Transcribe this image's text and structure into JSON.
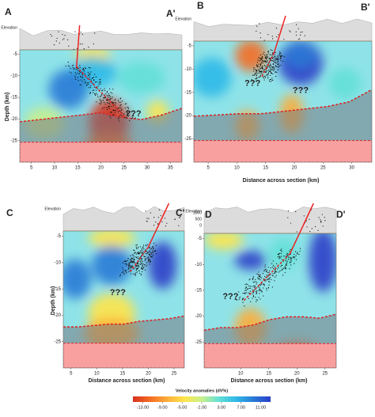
{
  "chart_data": [
    {
      "type": "section",
      "label_left": "A",
      "label_right": "A'",
      "elevation_label": "Elevation",
      "ylabel": "Depth (km)",
      "annotations": [
        "???"
      ],
      "xlim": [
        2.5,
        37.5
      ],
      "xticks": [
        5,
        10,
        15,
        20,
        25,
        30,
        35
      ],
      "ylim": [
        -30,
        -4
      ],
      "yticks": [
        -5,
        -10,
        -15,
        -20,
        -25
      ]
    },
    {
      "type": "section",
      "label_left": "B",
      "label_right": "B'",
      "elevation_label": "Elevation",
      "xlabel": "Distance across section (km)",
      "annotations": [
        "???",
        "???"
      ],
      "xlim": [
        2.5,
        33.5
      ],
      "xticks": [
        5,
        10,
        15,
        20,
        25,
        30
      ],
      "ylim": [
        -30,
        -4
      ],
      "yticks": [
        -5,
        -10,
        -15,
        -20,
        -25
      ]
    },
    {
      "type": "section",
      "label_left": "C",
      "label_right": "C'",
      "elevation_label": "Elevation",
      "ylabel": "Depth (km)",
      "xlabel": "Distance across section (km)",
      "annotations": [
        "???"
      ],
      "xlim": [
        3.5,
        27
      ],
      "xticks": [
        5,
        10,
        15,
        20,
        25
      ],
      "ylim": [
        -30,
        -4
      ],
      "yticks": [
        -5,
        -10,
        -15,
        -20,
        -25
      ]
    },
    {
      "type": "section",
      "label_left": "D",
      "label_right": "D'",
      "elevation_label": "Elevation",
      "xlabel": "Distance across section (km)",
      "annotations": [
        "???"
      ],
      "elevation_ticks": [
        1000,
        500,
        0
      ],
      "xlim": [
        3.5,
        27
      ],
      "xticks": [
        10,
        15,
        20,
        25
      ],
      "ylim": [
        -30,
        -4
      ],
      "yticks": [
        -5,
        -10,
        -15,
        -20,
        -25
      ]
    },
    {
      "type": "colorbar",
      "title": "Velocity anomalies (dV%)",
      "colors": [
        "#d7301f",
        "#f46d22",
        "#fdae3b",
        "#ffe54a",
        "#c8f08c",
        "#63e0d6",
        "#2fb9e8",
        "#2a7ad6",
        "#2b3fc8"
      ],
      "xlim": [
        -15,
        13
      ],
      "ticks": [
        {
          "value": -13,
          "label": "-13.00"
        },
        {
          "value": -9,
          "label": "-9.00"
        },
        {
          "value": -5,
          "label": "-5.00"
        },
        {
          "value": -1,
          "label": "-1.00"
        },
        {
          "value": 3,
          "label": "3.00"
        },
        {
          "value": 7,
          "label": "7.00"
        },
        {
          "value": 11,
          "label": "11.00"
        }
      ]
    }
  ]
}
